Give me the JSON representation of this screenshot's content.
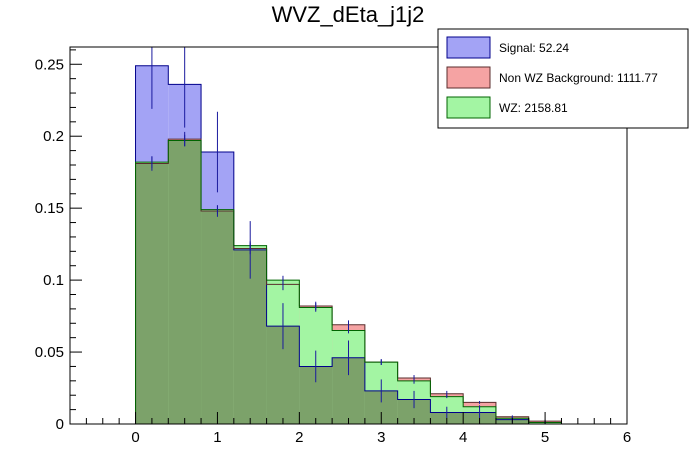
{
  "chart_data": {
    "type": "histogram",
    "title": "WVZ_dEta_j1j2",
    "xlabel": "",
    "ylabel": "",
    "xlim": [
      -0.8,
      6.0
    ],
    "ylim": [
      0,
      0.262
    ],
    "x_ticks": [
      0,
      1,
      2,
      3,
      4,
      5,
      6
    ],
    "x_tick_labels": [
      "0",
      "1",
      "2",
      "3",
      "4",
      "5",
      "6"
    ],
    "y_ticks": [
      0,
      0.05,
      0.1,
      0.15,
      0.2,
      0.25
    ],
    "y_tick_labels": [
      "0",
      "0.05",
      "0.1",
      "0.15",
      "0.2",
      "0.25"
    ],
    "bin_edges": [
      0,
      0.4,
      0.8,
      1.2,
      1.6,
      2.0,
      2.4,
      2.8,
      3.2,
      3.6,
      4.0,
      4.4,
      4.8,
      5.2
    ],
    "series": [
      {
        "name": "Signal",
        "legend_label": "Signal: 52.24",
        "fill": "#a3a3f5",
        "line": "#00008b",
        "values": [
          0.249,
          0.236,
          0.189,
          0.121,
          0.068,
          0.04,
          0.046,
          0.023,
          0.017,
          0.008,
          0.008,
          0.003,
          0.0
        ],
        "errors": [
          0.03,
          0.03,
          0.028,
          0.02,
          0.016,
          0.011,
          0.012,
          0.008,
          0.006,
          0.004,
          0.004,
          0.002,
          0.0
        ]
      },
      {
        "name": "Non WZ Background",
        "legend_label": "Non WZ Background: 1111.77",
        "fill": "#f5a3a3",
        "line": "#5a2d2d",
        "values": [
          0.181,
          0.198,
          0.148,
          0.122,
          0.097,
          0.082,
          0.069,
          0.043,
          0.032,
          0.021,
          0.015,
          0.005,
          0.002
        ],
        "errors": [
          0.005,
          0.005,
          0.004,
          0.004,
          0.004,
          0.003,
          0.003,
          0.002,
          0.002,
          0.002,
          0.001,
          0.001,
          0.001
        ]
      },
      {
        "name": "WZ",
        "legend_label": "WZ: 2158.81",
        "fill": "#a3f5a3",
        "line": "#006400",
        "values": [
          0.182,
          0.197,
          0.149,
          0.124,
          0.1,
          0.081,
          0.065,
          0.043,
          0.03,
          0.019,
          0.012,
          0.004,
          0.001
        ],
        "errors": [
          0.004,
          0.004,
          0.003,
          0.003,
          0.003,
          0.003,
          0.002,
          0.002,
          0.002,
          0.001,
          0.001,
          0.001,
          0.001
        ]
      }
    ],
    "overlap_fill": "#7ca26a",
    "legend_position": "top-right"
  }
}
